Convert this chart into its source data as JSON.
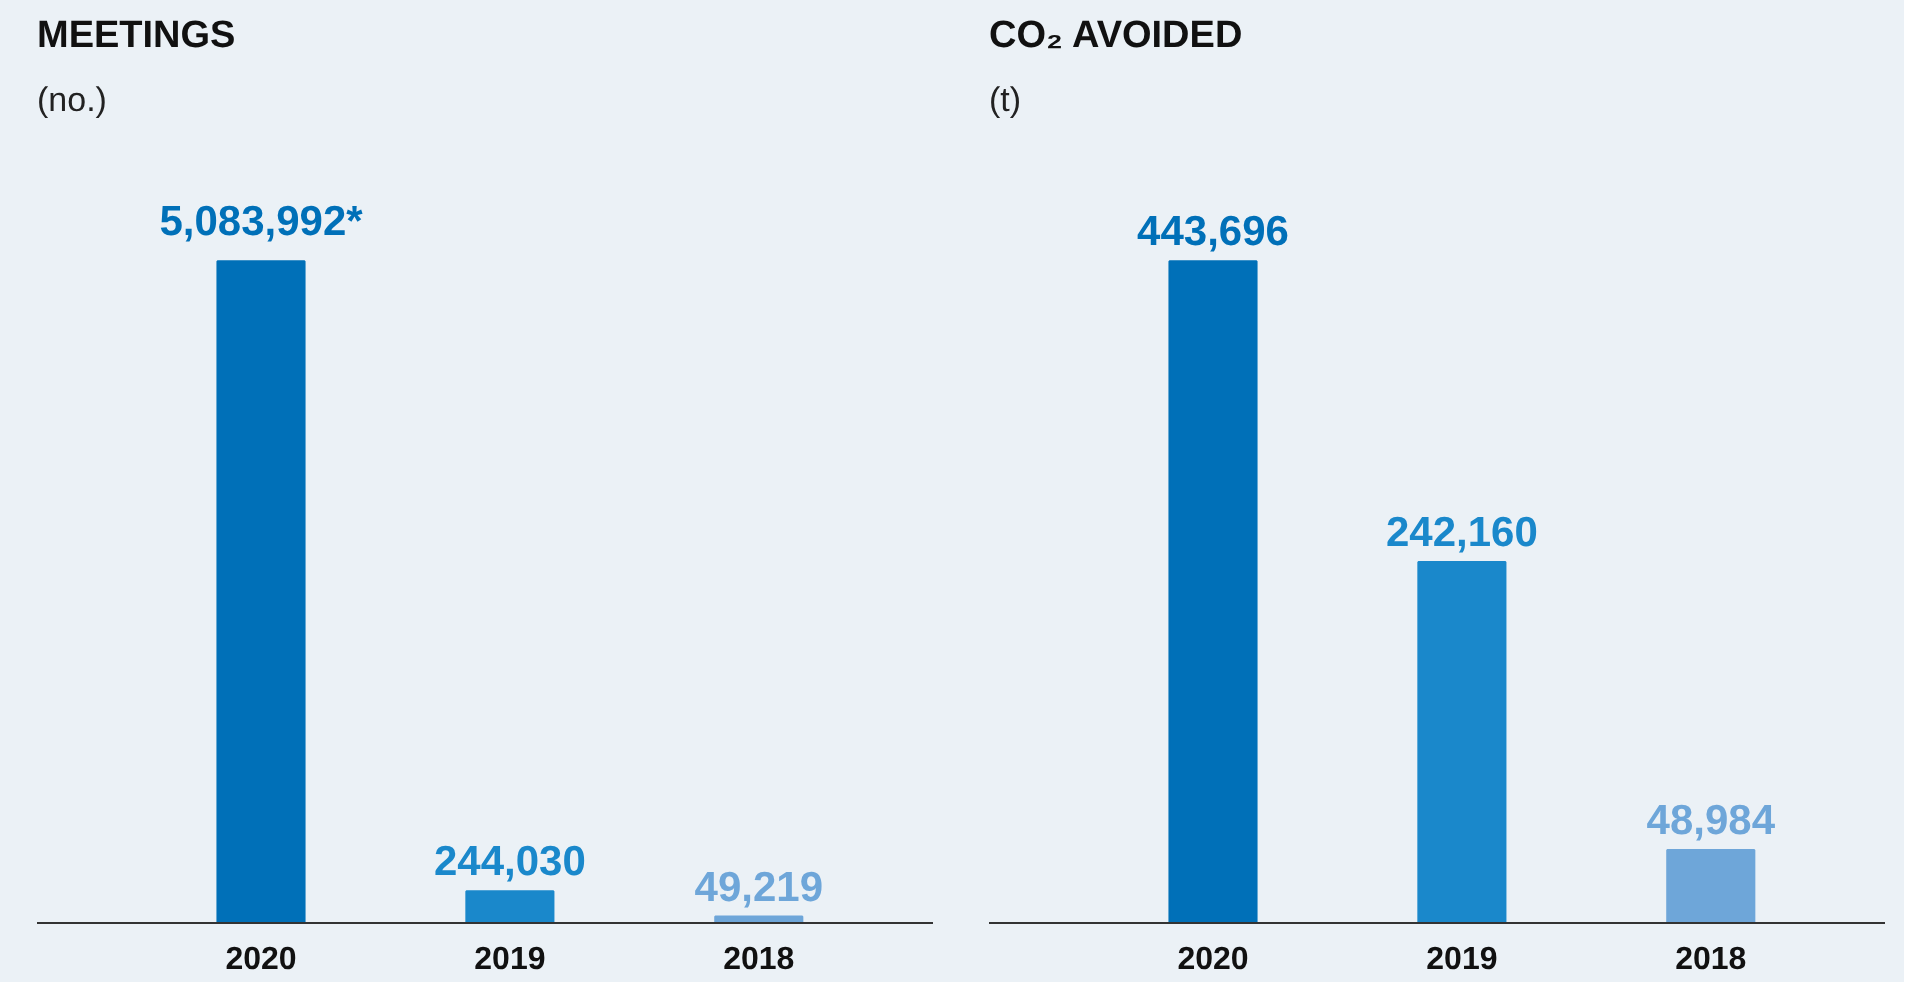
{
  "chart_data": [
    {
      "type": "bar",
      "title": "MEETINGS",
      "subtitle": "(no.)",
      "categories": [
        "2020",
        "2019",
        "2018"
      ],
      "values": [
        5083992,
        244030,
        49219
      ],
      "colors": [
        "#0070b8",
        "#1a88cb",
        "#6ea6d9"
      ],
      "value_labels": [
        "5,083,992*",
        "244,030",
        "49,219"
      ]
    },
    {
      "type": "bar",
      "title": "CO₂ AVOIDED",
      "subtitle": "(t)",
      "categories": [
        "2020",
        "2019",
        "2018"
      ],
      "values": [
        443696,
        242160,
        48984
      ],
      "colors": [
        "#0070b8",
        "#1a88cb",
        "#6ea6d9"
      ],
      "value_labels": [
        "443,696",
        "242,160",
        "48,984"
      ]
    }
  ]
}
